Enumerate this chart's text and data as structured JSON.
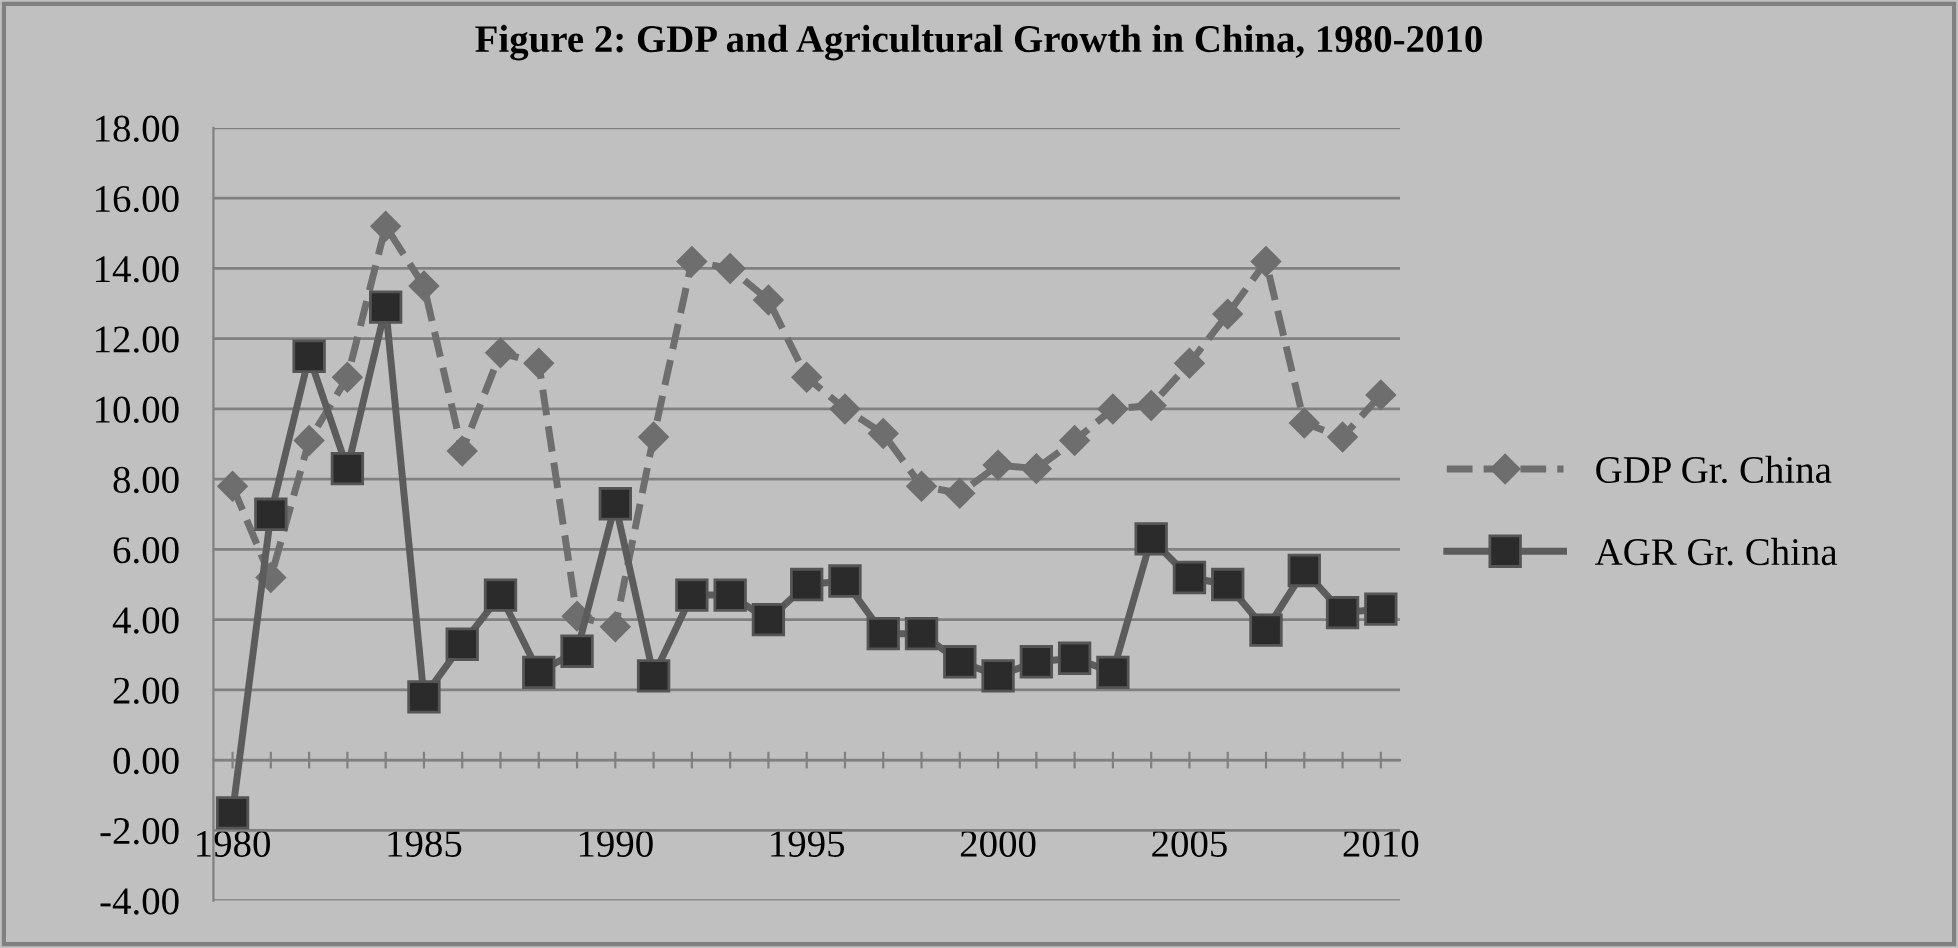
{
  "chart_data": {
    "type": "line",
    "title": "Figure 2: GDP and Agricultural Growth in China, 1980-2010",
    "x": [
      1980,
      1981,
      1982,
      1983,
      1984,
      1985,
      1986,
      1987,
      1988,
      1989,
      1990,
      1991,
      1992,
      1993,
      1994,
      1995,
      1996,
      1997,
      1998,
      1999,
      2000,
      2001,
      2002,
      2003,
      2004,
      2005,
      2006,
      2007,
      2008,
      2009,
      2010
    ],
    "series": [
      {
        "name": "GDP Gr. China",
        "color": "#6e6e6e",
        "marker": "diamond",
        "line_style": "dashed",
        "values": [
          7.8,
          5.2,
          9.1,
          10.9,
          15.2,
          13.5,
          8.8,
          11.6,
          11.3,
          4.1,
          3.8,
          9.2,
          14.2,
          14.0,
          13.1,
          10.9,
          10.0,
          9.3,
          7.8,
          7.6,
          8.4,
          8.3,
          9.1,
          10.0,
          10.1,
          11.3,
          12.7,
          14.2,
          9.6,
          9.2,
          10.4
        ]
      },
      {
        "name": "AGR Gr. China",
        "color": "#2b2b2b",
        "marker": "square",
        "line_style": "solid",
        "values": [
          -1.5,
          7.0,
          11.5,
          8.3,
          12.9,
          1.8,
          3.3,
          4.7,
          2.5,
          3.1,
          7.3,
          2.4,
          4.7,
          4.7,
          4.0,
          5.0,
          5.1,
          3.6,
          3.6,
          2.8,
          2.4,
          2.8,
          2.9,
          2.5,
          6.3,
          5.2,
          5.0,
          3.7,
          5.4,
          4.2,
          4.3
        ]
      }
    ],
    "xlim": [
      1979.5,
      2010.5
    ],
    "xticks": [
      1980,
      {
        "value": 1981,
        "label": null
      },
      {
        "value": 1982,
        "label": null
      },
      {
        "value": 1983,
        "label": null
      },
      {
        "value": 1984,
        "label": null
      },
      1985,
      {
        "value": 1986,
        "label": null
      },
      {
        "value": 1987,
        "label": null
      },
      {
        "value": 1988,
        "label": null
      },
      {
        "value": 1989,
        "label": null
      },
      1990,
      {
        "value": 1991,
        "label": null
      },
      {
        "value": 1992,
        "label": null
      },
      {
        "value": 1993,
        "label": null
      },
      {
        "value": 1994,
        "label": null
      },
      1995,
      {
        "value": 1996,
        "label": null
      },
      {
        "value": 1997,
        "label": null
      },
      {
        "value": 1998,
        "label": null
      },
      {
        "value": 1999,
        "label": null
      },
      2000,
      {
        "value": 2001,
        "label": null
      },
      {
        "value": 2002,
        "label": null
      },
      {
        "value": 2003,
        "label": null
      },
      {
        "value": 2004,
        "label": null
      },
      2005,
      {
        "value": 2006,
        "label": null
      },
      {
        "value": 2007,
        "label": null
      },
      {
        "value": 2008,
        "label": null
      },
      {
        "value": 2009,
        "label": null
      },
      2010
    ],
    "ylim": [
      -4,
      18
    ],
    "yticks": [
      {
        "value": -4,
        "label": "-4.00"
      },
      {
        "value": -2,
        "label": "-2.00"
      },
      {
        "value": 0,
        "label": "0.00"
      },
      {
        "value": 2,
        "label": "2.00"
      },
      {
        "value": 4,
        "label": "4.00"
      },
      {
        "value": 6,
        "label": "6.00"
      },
      {
        "value": 8,
        "label": "8.00"
      },
      {
        "value": 10,
        "label": "10.00"
      },
      {
        "value": 12,
        "label": "12.00"
      },
      {
        "value": 14,
        "label": "14.00"
      },
      {
        "value": 16,
        "label": "16.00"
      },
      {
        "value": 18,
        "label": "18.00"
      }
    ],
    "grid": "y",
    "legend": "right"
  }
}
